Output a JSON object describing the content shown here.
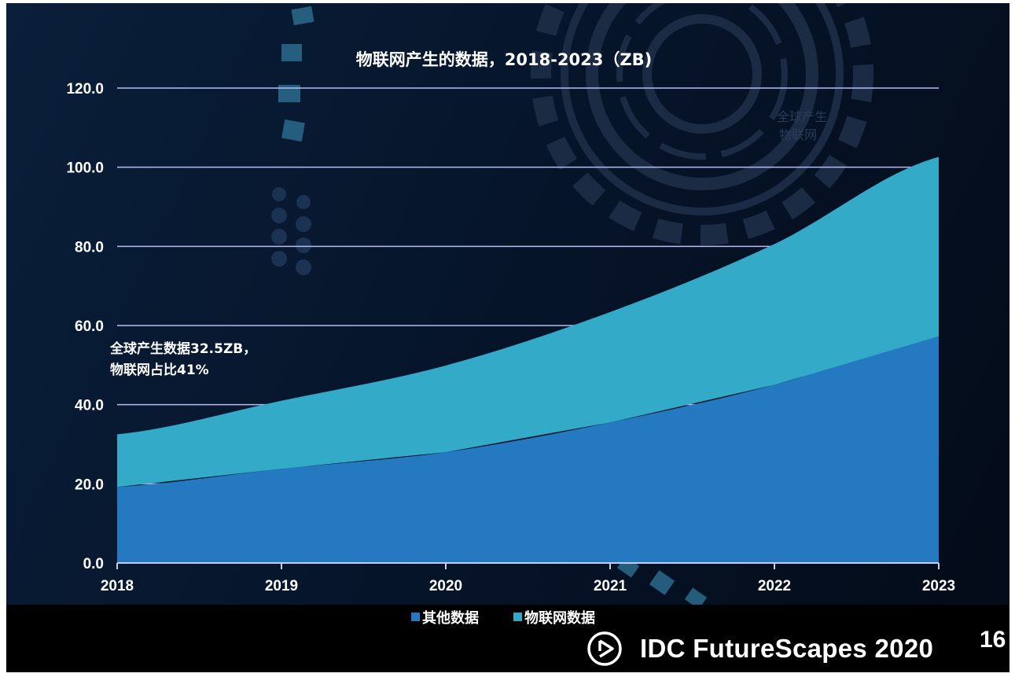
{
  "chart_data": {
    "type": "area",
    "stacked": true,
    "title": "物联网产生的数据，2018-2023（ZB)",
    "categories": [
      "2018",
      "2019",
      "2020",
      "2021",
      "2022",
      "2023"
    ],
    "series": [
      {
        "name": "其他数据",
        "values": [
          19.2,
          23.8,
          28.0,
          35.5,
          45.0,
          57.3
        ],
        "color": "#2479c0"
      },
      {
        "name": "物联网数据",
        "values": [
          13.3,
          17.2,
          21.9,
          27.9,
          35.6,
          45.3
        ],
        "color": "#32aac8"
      }
    ],
    "ylim": [
      0,
      120
    ],
    "yticks": [
      "0.0",
      "20.0",
      "40.0",
      "60.0",
      "80.0",
      "100.0",
      "120.0"
    ],
    "grid": true,
    "legend_position": "bottom",
    "annotation": {
      "lines": [
        "全球产生数据32.5ZB，",
        "物联网占比41%"
      ]
    },
    "faint_text": [
      "全球产生",
      "物联网"
    ]
  },
  "footer": {
    "brand": "IDC FutureScapes 2020",
    "page_number": "16"
  },
  "colors": {
    "background": "#06152b",
    "gridline": "#b8bcf0",
    "axis": "#c8ccf4"
  },
  "icons": [
    "play-circle-icon"
  ]
}
